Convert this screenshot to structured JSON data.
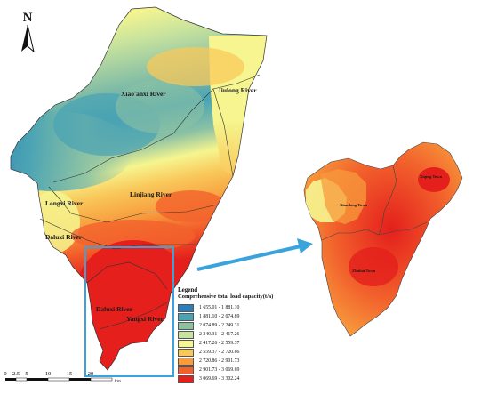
{
  "north": {
    "label": "N"
  },
  "rivers": {
    "xiaoanxi": "Xiao'anxi River",
    "jiulong": "Jiulong River",
    "linjiang": "Linjiang River",
    "longxi": "Longxi River",
    "daluxi_upper": "Daluxi River",
    "daluxi_lower": "Daluxi River",
    "yangxi": "Yangxi River"
  },
  "towns": {
    "xiandong": "Xiandong Town",
    "xiqing": "Xiqing Town",
    "zhuhai": "Zhuhai Town"
  },
  "legend": {
    "title": "Legend",
    "subtitle": "Comprehensive total load capacity(t/a)",
    "items": [
      {
        "range": "1 655.01 - 1 881.10",
        "color": "#2c7fb8"
      },
      {
        "range": "1 881.10 - 2 074.89",
        "color": "#49a3b4"
      },
      {
        "range": "2 074.89 - 2 249.31",
        "color": "#8cc2a4"
      },
      {
        "range": "2 249.31 - 2 417.26",
        "color": "#c8e39d"
      },
      {
        "range": "2 417.26 - 2 559.37",
        "color": "#f6f58f"
      },
      {
        "range": "2 559.37 - 2 720.86",
        "color": "#f9c85a"
      },
      {
        "range": "2 720.86 - 2 901.73",
        "color": "#f79b3c"
      },
      {
        "range": "2 901.73 - 3 069.69",
        "color": "#f2612c"
      },
      {
        "range": "3 069.69 - 3 302.24",
        "color": "#e41f1c"
      }
    ]
  },
  "scalebar": {
    "ticks": [
      "0",
      "2.5",
      "5",
      "10",
      "15",
      "20"
    ],
    "unit": "km"
  }
}
